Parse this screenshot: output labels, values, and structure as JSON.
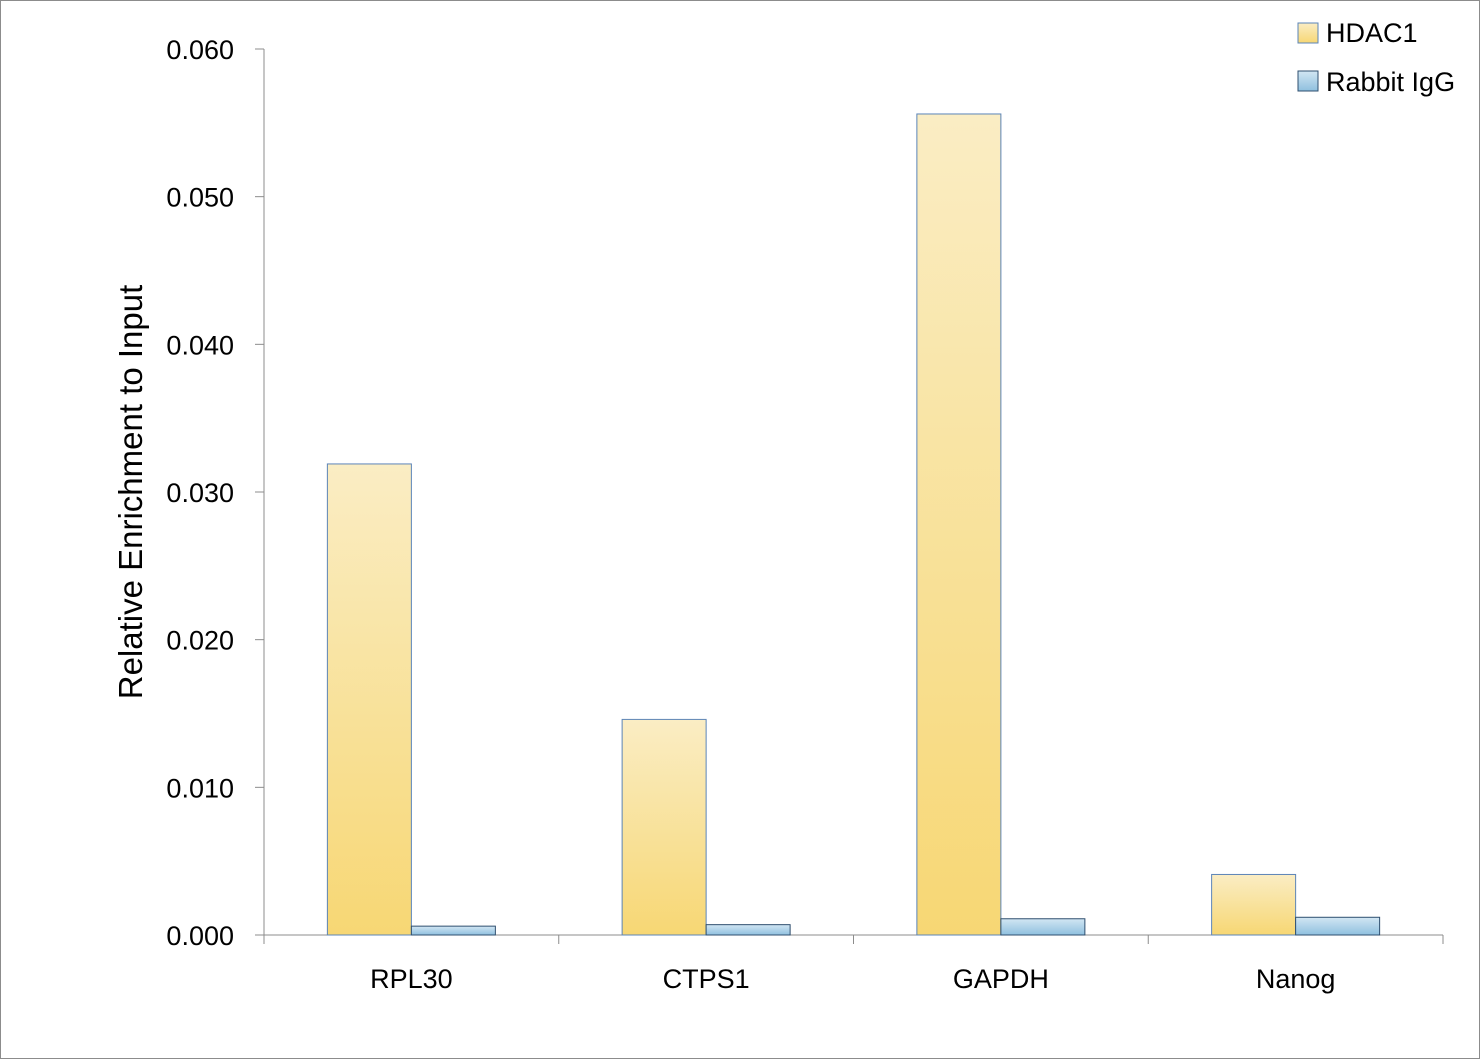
{
  "chart_data": {
    "type": "bar",
    "title": "",
    "xlabel": "",
    "ylabel": "Relative Enrichment to Input",
    "categories": [
      "RPL30",
      "CTPS1",
      "GAPDH",
      "Nanog"
    ],
    "series": [
      {
        "name": "HDAC1",
        "values": [
          0.0319,
          0.0146,
          0.0556,
          0.0041
        ]
      },
      {
        "name": "Rabbit IgG",
        "values": [
          0.0006,
          0.0007,
          0.0011,
          0.0012
        ]
      }
    ],
    "ylim": [
      0,
      0.06
    ],
    "yticks": [
      "0.000",
      "0.010",
      "0.020",
      "0.030",
      "0.040",
      "0.050",
      "0.060"
    ],
    "grid": false,
    "legend_position": "top-right",
    "colors": {
      "HDAC1_top": "#faedc4",
      "HDAC1_bottom": "#f7d774",
      "HDAC1_border": "#5b84b8",
      "IgG_top": "#d2e6f3",
      "IgG_bottom": "#8fc0df",
      "IgG_border": "#2f4f6f",
      "axis": "#8c8c8c"
    }
  }
}
